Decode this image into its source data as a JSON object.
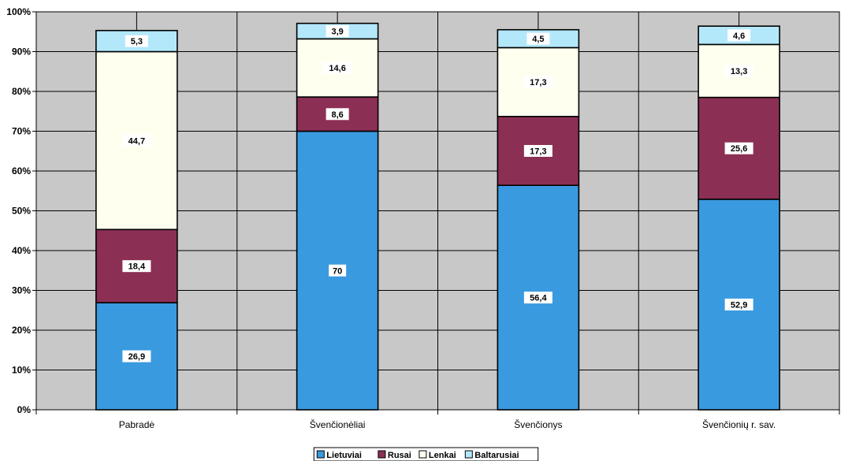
{
  "chart_data": {
    "type": "bar",
    "stacked": true,
    "percent": true,
    "categories": [
      "Pabradė",
      "Švenčionėliai",
      "Švenčionys",
      "Švenčionių r. sav."
    ],
    "series": [
      {
        "name": "Lietuviai",
        "color": "#3a9ae0",
        "values": [
          26.9,
          70,
          56.4,
          52.9
        ]
      },
      {
        "name": "Rusai",
        "color": "#8c2f55",
        "values": [
          18.4,
          8.6,
          17.3,
          25.6
        ]
      },
      {
        "name": "Lenkai",
        "color": "#fffff0",
        "values": [
          44.7,
          14.6,
          17.3,
          13.3
        ]
      },
      {
        "name": "Baltarusiai",
        "color": "#b3e8fb",
        "values": [
          5.3,
          3.9,
          4.5,
          4.6
        ]
      }
    ],
    "y_ticks": [
      "0%",
      "10%",
      "20%",
      "30%",
      "40%",
      "50%",
      "60%",
      "70%",
      "80%",
      "90%",
      "100%"
    ],
    "ylim": [
      0,
      100
    ],
    "grid": true,
    "plot_background": "#c8c8c8",
    "legend_position": "bottom-center"
  }
}
